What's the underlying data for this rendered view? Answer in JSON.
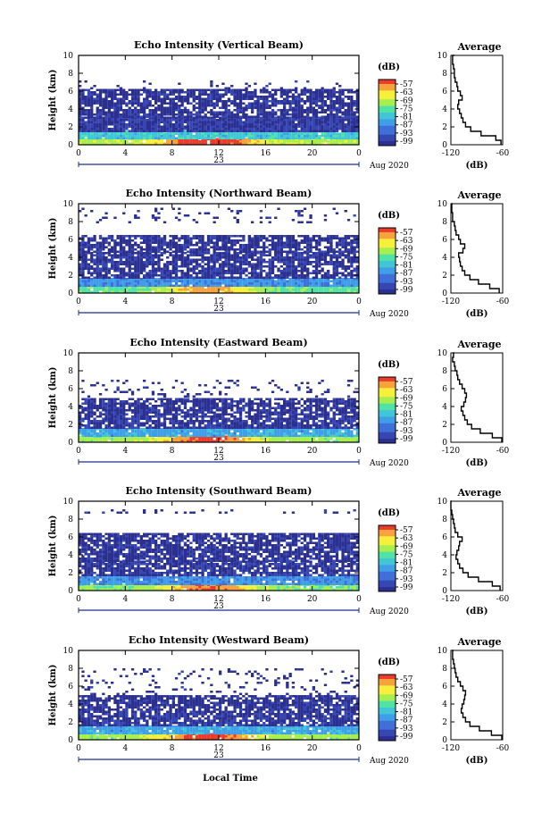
{
  "x_label": "Local Time",
  "average_title": "Average",
  "average_xlabel": "(dB)",
  "colorbar_label": "(dB)",
  "date_label": "Aug 2020",
  "day_label": "23",
  "ylabel": "Height (km)",
  "colormap": [
    "#2b2f8f",
    "#3646b3",
    "#3f6fd8",
    "#3f9ee8",
    "#40c6d7",
    "#4fe3a6",
    "#a6ef4f",
    "#f6f03a",
    "#f7a23a",
    "#ea3b2b"
  ],
  "chart_data": [
    {
      "type": "heatmap",
      "title": "Echo Intensity (Vertical Beam)",
      "xlabel": "",
      "ylabel": "Height (km)",
      "xlim": [
        0,
        24
      ],
      "ylim": [
        0,
        10
      ],
      "x_ticks": [
        "0",
        "4",
        "8",
        "12",
        "16",
        "20",
        "0"
      ],
      "y_ticks": [
        "0",
        "2",
        "4",
        "6",
        "8",
        "10"
      ],
      "colorbar": {
        "label": "(dB)",
        "ticks": [
          "-57",
          "-63",
          "-69",
          "-75",
          "-81",
          "-87",
          "-93",
          "-99"
        ]
      },
      "layers": [
        {
          "from_km": 0,
          "to_km": 0.6,
          "intensity": 0.85
        },
        {
          "from_km": 0.6,
          "to_km": 1.4,
          "intensity": 0.45
        },
        {
          "from_km": 1.4,
          "to_km": 3.0,
          "intensity": 0.05
        },
        {
          "from_km": 3.0,
          "to_km": 6.2,
          "intensity": 0.02
        },
        {
          "from_km": 6.2,
          "to_km": 7.0,
          "intensity": 0.0
        }
      ],
      "average": {
        "xlim": [
          -120,
          -60
        ],
        "x_ticks": [
          "-120",
          "-60"
        ],
        "y_ticks": [
          "0",
          "2",
          "4",
          "6",
          "8",
          "10"
        ],
        "height_km": [
          0,
          0.5,
          1,
          1.5,
          2,
          2.5,
          3,
          3.5,
          4,
          4.5,
          5,
          5.5,
          6,
          6.5,
          7,
          7.5,
          8,
          8.5,
          9,
          9.5,
          10
        ],
        "value_db": [
          -62,
          -68,
          -85,
          -97,
          -103,
          -106,
          -108,
          -110,
          -112,
          -111,
          -107,
          -109,
          -112,
          -113,
          -115,
          -116,
          -116,
          -117,
          -118,
          -118,
          -116
        ]
      }
    },
    {
      "type": "heatmap",
      "title": "Echo Intensity (Northward Beam)",
      "xlabel": "",
      "ylabel": "Height (km)",
      "xlim": [
        0,
        24
      ],
      "ylim": [
        0,
        10
      ],
      "x_ticks": [
        "0",
        "4",
        "8",
        "12",
        "16",
        "20",
        "0"
      ],
      "y_ticks": [
        "0",
        "2",
        "4",
        "6",
        "8",
        "10"
      ],
      "colorbar": {
        "label": "(dB)",
        "ticks": [
          "-57",
          "-63",
          "-69",
          "-75",
          "-81",
          "-87",
          "-93",
          "-99"
        ]
      },
      "layers": [
        {
          "from_km": 0,
          "to_km": 0.7,
          "intensity": 0.7
        },
        {
          "from_km": 0.7,
          "to_km": 1.6,
          "intensity": 0.3
        },
        {
          "from_km": 1.6,
          "to_km": 4.5,
          "intensity": 0.03
        },
        {
          "from_km": 4.5,
          "to_km": 6.3,
          "intensity": 0.02
        },
        {
          "from_km": 7.8,
          "to_km": 9.5,
          "intensity": 0.0
        }
      ],
      "average": {
        "xlim": [
          -120,
          -60
        ],
        "x_ticks": [
          "-120",
          "-60"
        ],
        "y_ticks": [
          "0",
          "2",
          "4",
          "6",
          "8",
          "10"
        ],
        "height_km": [
          0,
          0.5,
          1,
          1.5,
          2,
          2.5,
          3,
          3.5,
          4,
          4.5,
          5,
          5.5,
          6,
          6.5,
          7,
          7.5,
          8,
          8.5,
          9,
          9.5,
          10
        ],
        "value_db": [
          -64,
          -75,
          -88,
          -98,
          -104,
          -107,
          -109,
          -110,
          -111,
          -106,
          -104,
          -109,
          -111,
          -114,
          -115,
          -116,
          -118,
          -118,
          -119,
          -119,
          -118
        ]
      }
    },
    {
      "type": "heatmap",
      "title": "Echo Intensity (Eastward Beam)",
      "xlabel": "",
      "ylabel": "Height (km)",
      "xlim": [
        0,
        24
      ],
      "ylim": [
        0,
        10
      ],
      "x_ticks": [
        "0",
        "4",
        "8",
        "12",
        "16",
        "20",
        "0"
      ],
      "y_ticks": [
        "0",
        "2",
        "4",
        "6",
        "8",
        "10"
      ],
      "colorbar": {
        "label": "(dB)",
        "ticks": [
          "-57",
          "-63",
          "-69",
          "-75",
          "-81",
          "-87",
          "-93",
          "-99"
        ]
      },
      "layers": [
        {
          "from_km": 0,
          "to_km": 0.6,
          "intensity": 0.8
        },
        {
          "from_km": 0.6,
          "to_km": 1.5,
          "intensity": 0.35
        },
        {
          "from_km": 1.5,
          "to_km": 3.2,
          "intensity": 0.04
        },
        {
          "from_km": 3.2,
          "to_km": 4.8,
          "intensity": 0.02
        },
        {
          "from_km": 5.0,
          "to_km": 7.0,
          "intensity": 0.0
        }
      ],
      "average": {
        "xlim": [
          -120,
          -60
        ],
        "x_ticks": [
          "-120",
          "-60"
        ],
        "y_ticks": [
          "0",
          "2",
          "4",
          "6",
          "8",
          "10"
        ],
        "height_km": [
          0,
          0.5,
          1,
          1.5,
          2,
          2.5,
          3,
          3.5,
          4,
          4.5,
          5,
          5.5,
          6,
          6.5,
          7,
          7.5,
          8,
          8.5,
          9,
          9.5,
          10
        ],
        "value_db": [
          -61,
          -72,
          -86,
          -96,
          -101,
          -104,
          -106,
          -108,
          -105,
          -103,
          -102,
          -104,
          -107,
          -110,
          -112,
          -113,
          -115,
          -116,
          -118,
          -117,
          -116
        ]
      }
    },
    {
      "type": "heatmap",
      "title": "Echo Intensity (Southward Beam)",
      "xlabel": "",
      "ylabel": "Height (km)",
      "xlim": [
        0,
        24
      ],
      "ylim": [
        0,
        10
      ],
      "x_ticks": [
        "0",
        "4",
        "8",
        "12",
        "16",
        "20",
        "0"
      ],
      "y_ticks": [
        "0",
        "2",
        "4",
        "6",
        "8",
        "10"
      ],
      "colorbar": {
        "label": "(dB)",
        "ticks": [
          "-57",
          "-63",
          "-69",
          "-75",
          "-81",
          "-87",
          "-93",
          "-99"
        ]
      },
      "layers": [
        {
          "from_km": 0,
          "to_km": 0.6,
          "intensity": 0.75
        },
        {
          "from_km": 0.6,
          "to_km": 1.6,
          "intensity": 0.3
        },
        {
          "from_km": 1.6,
          "to_km": 3.2,
          "intensity": 0.04
        },
        {
          "from_km": 3.2,
          "to_km": 6.3,
          "intensity": 0.02
        },
        {
          "from_km": 8.6,
          "to_km": 9.0,
          "intensity": 0.0
        }
      ],
      "average": {
        "xlim": [
          -120,
          -60
        ],
        "x_ticks": [
          "-120",
          "-60"
        ],
        "y_ticks": [
          "0",
          "2",
          "4",
          "6",
          "8",
          "10"
        ],
        "height_km": [
          0,
          0.5,
          1,
          1.5,
          2,
          2.5,
          3,
          3.5,
          4,
          4.5,
          5,
          5.5,
          6,
          6.5,
          7,
          7.5,
          8,
          8.5,
          9,
          9.5,
          10
        ],
        "value_db": [
          -63,
          -72,
          -88,
          -100,
          -106,
          -110,
          -112,
          -114,
          -113,
          -111,
          -110,
          -107,
          -112,
          -115,
          -116,
          -117,
          -118,
          -119,
          -120,
          -120,
          -119
        ]
      }
    },
    {
      "type": "heatmap",
      "title": "Echo Intensity (Westward Beam)",
      "xlabel": "Local Time",
      "ylabel": "Height (km)",
      "xlim": [
        0,
        24
      ],
      "ylim": [
        0,
        10
      ],
      "x_ticks": [
        "0",
        "4",
        "8",
        "12",
        "16",
        "20",
        "0"
      ],
      "y_ticks": [
        "0",
        "2",
        "4",
        "6",
        "8",
        "10"
      ],
      "colorbar": {
        "label": "(dB)",
        "ticks": [
          "-57",
          "-63",
          "-69",
          "-75",
          "-81",
          "-87",
          "-93",
          "-99"
        ]
      },
      "layers": [
        {
          "from_km": 0,
          "to_km": 0.6,
          "intensity": 0.8
        },
        {
          "from_km": 0.6,
          "to_km": 1.5,
          "intensity": 0.35
        },
        {
          "from_km": 1.5,
          "to_km": 3.0,
          "intensity": 0.04
        },
        {
          "from_km": 3.0,
          "to_km": 4.8,
          "intensity": 0.02
        },
        {
          "from_km": 5.0,
          "to_km": 8.0,
          "intensity": 0.0
        }
      ],
      "average": {
        "xlim": [
          -120,
          -60
        ],
        "x_ticks": [
          "-120",
          "-60"
        ],
        "y_ticks": [
          "0",
          "2",
          "4",
          "6",
          "8",
          "10"
        ],
        "height_km": [
          0,
          0.5,
          1,
          1.5,
          2,
          2.5,
          3,
          3.5,
          4,
          4.5,
          5,
          5.5,
          6,
          6.5,
          7,
          7.5,
          8,
          8.5,
          9,
          9.5,
          10
        ],
        "value_db": [
          -61,
          -73,
          -87,
          -98,
          -103,
          -106,
          -108,
          -107,
          -105,
          -104,
          -103,
          -106,
          -109,
          -112,
          -114,
          -115,
          -116,
          -117,
          -118,
          -118,
          -117
        ]
      }
    }
  ]
}
